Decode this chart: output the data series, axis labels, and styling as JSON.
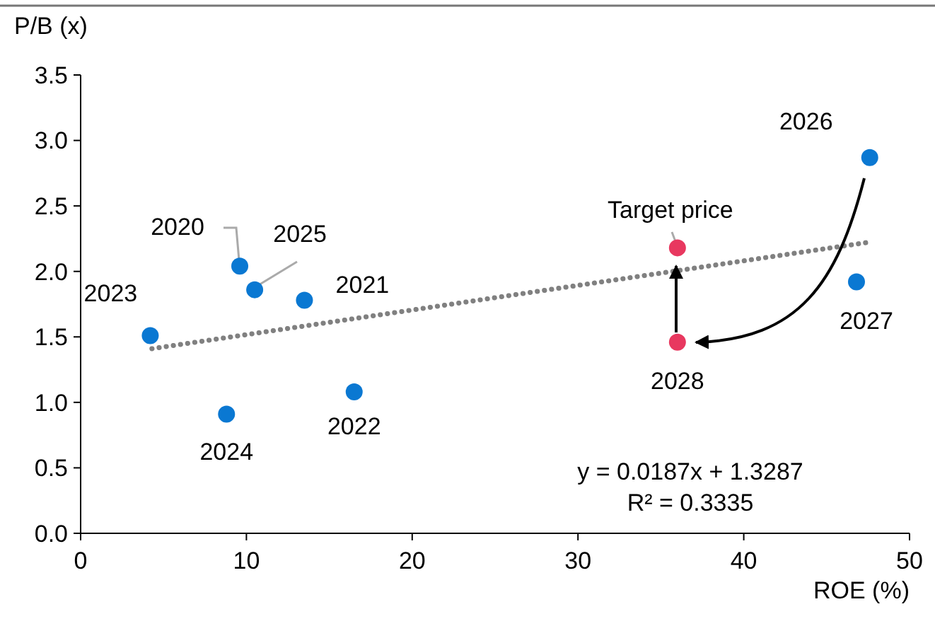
{
  "chart_data": {
    "type": "scatter",
    "ylabel": "P/B (x)",
    "xlabel": "ROE (%)",
    "xlim": [
      0,
      50
    ],
    "xticks": [
      0,
      10,
      20,
      30,
      40,
      50
    ],
    "ylim": [
      0,
      3.5
    ],
    "yticks": [
      {
        "value": 0,
        "label": "0.0"
      },
      0.5,
      {
        "value": 1,
        "label": "1.0"
      },
      1.5,
      {
        "value": 2,
        "label": "2.0"
      },
      2.5,
      {
        "value": 3,
        "label": "3.0"
      },
      3.5
    ],
    "grid": false,
    "series": [
      {
        "color": "#0a78d2",
        "marker": "circle",
        "x": [
          4.2,
          9.6,
          10.5,
          13.5,
          8.8,
          16.5,
          47.6,
          46.8
        ],
        "values": [
          1.51,
          2.04,
          1.86,
          1.78,
          0.91,
          1.08,
          2.87,
          1.92
        ]
      },
      {
        "color": "#e8385f",
        "marker": "circle",
        "x": [
          36.0,
          36.0
        ],
        "values": [
          2.18,
          1.46
        ]
      },
      {
        "type": "line",
        "color": "#808080",
        "line_style": "dotted",
        "marker": "none",
        "x": [
          4.3,
          47.4
        ],
        "values": [
          1.41,
          2.22
        ]
      }
    ],
    "annotations": [
      {
        "text": "2023",
        "x": 4.2,
        "y": 1.51
      },
      {
        "text": "2024",
        "x": 8.8,
        "y": 0.91
      },
      {
        "text": "2020",
        "x": 9.6,
        "y": 2.04
      },
      {
        "text": "2025",
        "x": 10.5,
        "y": 1.86
      },
      {
        "text": "2021",
        "x": 13.5,
        "y": 1.78
      },
      {
        "text": "2022",
        "x": 16.5,
        "y": 1.08
      },
      {
        "text": "2026",
        "x": 47.6,
        "y": 2.87
      },
      {
        "text": "2027",
        "x": 46.8,
        "y": 1.92
      },
      {
        "text": "2028",
        "x": 36.0,
        "y": 1.46
      },
      {
        "text": "Target price",
        "x": 36.0,
        "y": 2.18
      },
      "y = 0.0187x + 1.3287",
      "R² = 0.3335"
    ]
  }
}
